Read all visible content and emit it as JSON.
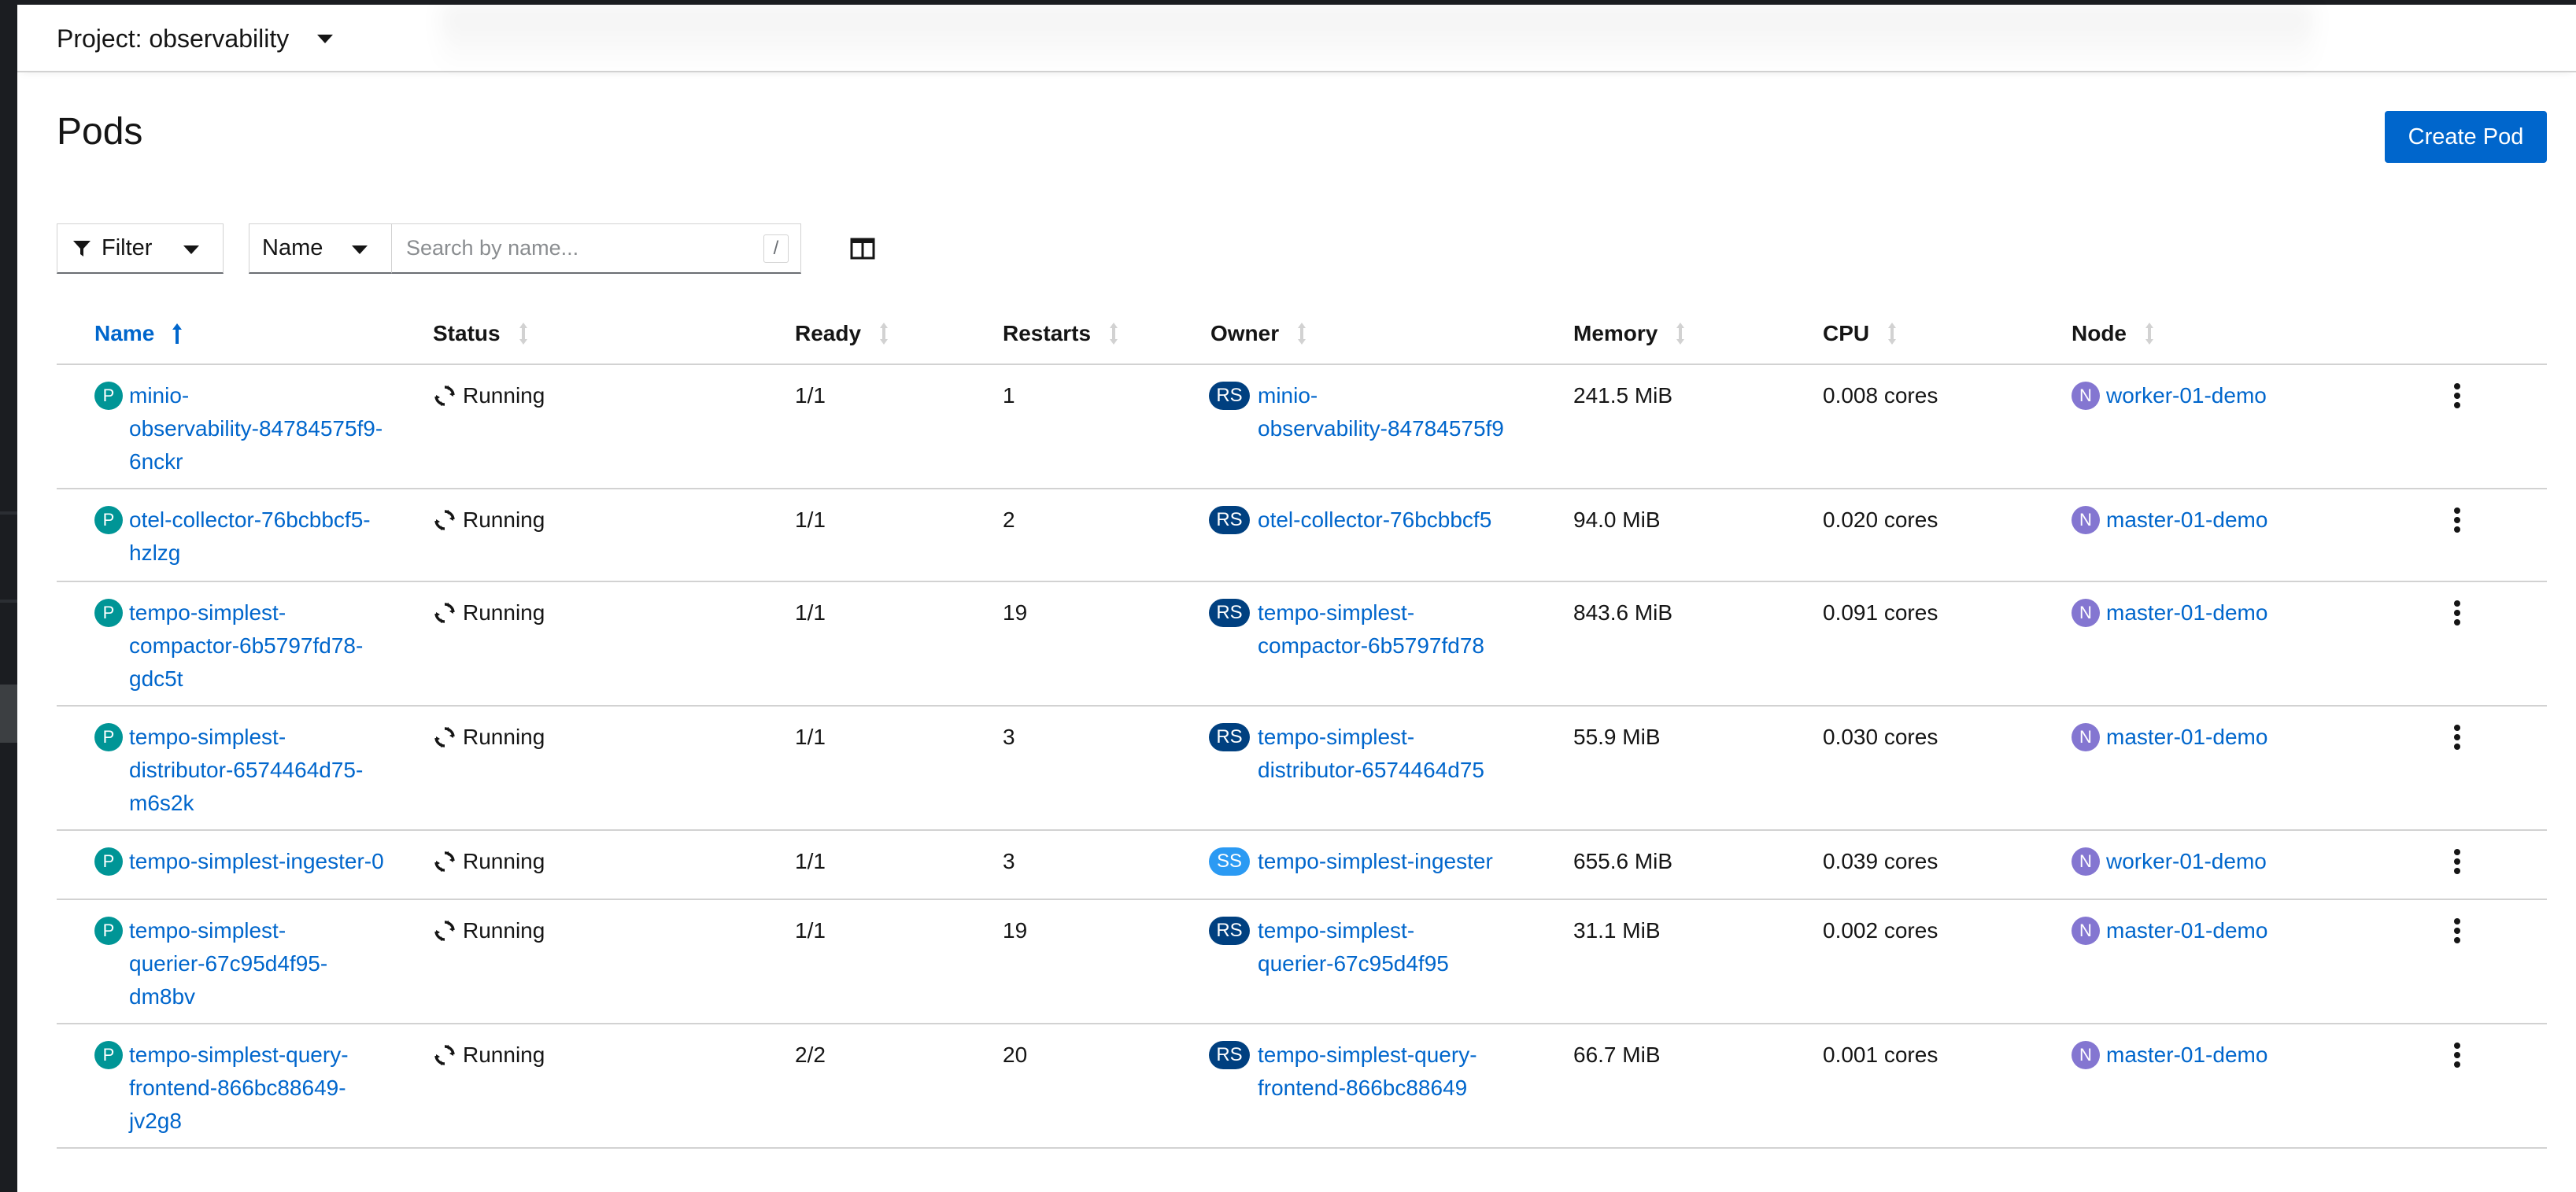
{
  "project": {
    "label": "Project: observability"
  },
  "page": {
    "title": "Pods",
    "create_button": "Create Pod"
  },
  "toolbar": {
    "filter_label": "Filter",
    "name_select": "Name",
    "search_placeholder": "Search by name...",
    "search_shortcut": "/"
  },
  "table": {
    "columns": [
      "Name",
      "Status",
      "Ready",
      "Restarts",
      "Owner",
      "Memory",
      "CPU",
      "Node"
    ],
    "sorted_column": "Name",
    "rows": [
      {
        "name": [
          "minio-",
          "observability-84784575f9-",
          "6nckr"
        ],
        "status": "Running",
        "ready": "1/1",
        "restarts": "1",
        "owner_kind": "RS",
        "owner": [
          "minio-",
          "observability-84784575f9"
        ],
        "memory": "241.5 MiB",
        "cpu": "0.008 cores",
        "node": "worker-01-demo"
      },
      {
        "name": [
          "otel-collector-76bcbbcf5-",
          "hzlzg"
        ],
        "status": "Running",
        "ready": "1/1",
        "restarts": "2",
        "owner_kind": "RS",
        "owner": [
          "otel-collector-76bcbbcf5"
        ],
        "memory": "94.0 MiB",
        "cpu": "0.020 cores",
        "node": "master-01-demo"
      },
      {
        "name": [
          "tempo-simplest-",
          "compactor-6b5797fd78-",
          "gdc5t"
        ],
        "status": "Running",
        "ready": "1/1",
        "restarts": "19",
        "owner_kind": "RS",
        "owner": [
          "tempo-simplest-",
          "compactor-6b5797fd78"
        ],
        "memory": "843.6 MiB",
        "cpu": "0.091 cores",
        "node": "master-01-demo"
      },
      {
        "name": [
          "tempo-simplest-",
          "distributor-6574464d75-",
          "m6s2k"
        ],
        "status": "Running",
        "ready": "1/1",
        "restarts": "3",
        "owner_kind": "RS",
        "owner": [
          "tempo-simplest-",
          "distributor-6574464d75"
        ],
        "memory": "55.9 MiB",
        "cpu": "0.030 cores",
        "node": "master-01-demo"
      },
      {
        "name": [
          "tempo-simplest-ingester-0"
        ],
        "status": "Running",
        "ready": "1/1",
        "restarts": "3",
        "owner_kind": "SS",
        "owner": [
          "tempo-simplest-ingester"
        ],
        "memory": "655.6 MiB",
        "cpu": "0.039 cores",
        "node": "worker-01-demo"
      },
      {
        "name": [
          "tempo-simplest-",
          "querier-67c95d4f95-",
          "dm8bv"
        ],
        "status": "Running",
        "ready": "1/1",
        "restarts": "19",
        "owner_kind": "RS",
        "owner": [
          "tempo-simplest-",
          "querier-67c95d4f95"
        ],
        "memory": "31.1 MiB",
        "cpu": "0.002 cores",
        "node": "master-01-demo"
      },
      {
        "name": [
          "tempo-simplest-query-",
          "frontend-866bc88649-",
          "jv2g8"
        ],
        "status": "Running",
        "ready": "2/2",
        "restarts": "20",
        "owner_kind": "RS",
        "owner": [
          "tempo-simplest-query-",
          "frontend-866bc88649"
        ],
        "memory": "66.7 MiB",
        "cpu": "0.001 cores",
        "node": "master-01-demo"
      }
    ],
    "pod_badge": "P",
    "node_badge": "N"
  },
  "icons": {
    "project_caret": "caret-down-icon",
    "filter": "filter-icon",
    "columns": "columns-manage-icon",
    "status": "sync-icon",
    "kebab": "kebab-menu-icon",
    "sort_asc": "sort-ascending-icon",
    "sort": "sort-icon"
  },
  "colors": {
    "accent": "#0066cc",
    "pod_badge": "#009596",
    "node_badge": "#8476d1",
    "rs_badge": "#004080",
    "ss_badge": "#2b9af3"
  }
}
